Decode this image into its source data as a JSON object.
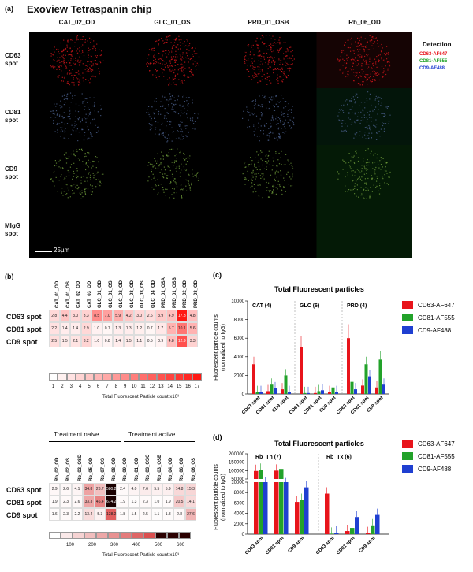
{
  "panel_a": {
    "label": "(a)",
    "title": "Exoview Tetraspanin chip",
    "columns": [
      "CAT_02_OD",
      "GLC_01_OS",
      "PRD_01_OSB",
      "Rb_06_OD"
    ],
    "rows": [
      {
        "l1": "CD63",
        "l2": "spot"
      },
      {
        "l1": "CD81",
        "l2": "spot"
      },
      {
        "l1": "CD9",
        "l2": "spot"
      },
      {
        "l1": "MIgG",
        "l2": "spot"
      }
    ],
    "detection_title": "Detection",
    "detection": [
      {
        "label": "CD63-AF647",
        "color": "#e8141b"
      },
      {
        "label": "CD81-AF555",
        "color": "#22a22a"
      },
      {
        "label": "CD9-AF488",
        "color": "#1f3fd1"
      }
    ],
    "scale_bar": "25µm"
  },
  "panel_b": {
    "label": "(b)",
    "heatmap1": {
      "columns": [
        "CAT_01_OD",
        "CAT_01_OS",
        "CAT_02_OD",
        "CAT_03_OD",
        "GLC_01_OD",
        "GLC_01_OS",
        "GLC_02_OD",
        "GLC_03_OD",
        "GLC_03_OS",
        "GLC_04_OD",
        "PRD_01_OSA",
        "PRD_01_OSB",
        "PRD_02_OD",
        "PRD_03_OD"
      ],
      "rows": [
        "CD63 spot",
        "CD81 spot",
        "CD9 spot"
      ],
      "values": [
        [
          "2.8",
          "4.4",
          "3.0",
          "3.3",
          "8.5",
          "7.0",
          "5.9",
          "4.2",
          "3.0",
          "2.6",
          "3.9",
          "4.9",
          "17.3",
          "4.8"
        ],
        [
          "2.2",
          "1.4",
          "1.4",
          "2.9",
          "1.0",
          "0.7",
          "1.3",
          "1.3",
          "1.2",
          "0.7",
          "1.7",
          "5.7",
          "10.1",
          "5.6"
        ],
        [
          "2.5",
          "1.5",
          "2.1",
          "3.2",
          "1.0",
          "0.8",
          "1.4",
          "1.5",
          "1.1",
          "0.5",
          "0.9",
          "4.8",
          "12.9",
          "3.3"
        ]
      ],
      "scale_ticks": [
        "1",
        "2",
        "3",
        "4",
        "5",
        "6",
        "7",
        "8",
        "9",
        "10",
        "11",
        "12",
        "13",
        "14",
        "15",
        "16",
        "17"
      ],
      "scale_caption": "Total Fluorescent Particle count x10³"
    },
    "heatmap2": {
      "group_naive": "Treatment naive",
      "group_active": "Treatment active",
      "columns": [
        "Rb_02_OD",
        "Rb_02_OS",
        "Rb_03_OSD",
        "Rb_05_OD",
        "Rb_07_OS",
        "Rb_08_OD",
        "Rb_09_OD",
        "Rb_01_OD",
        "Rb_03_OSC",
        "Rb_03_OSE",
        "Rb_04_OD",
        "Rb_06_OD",
        "Rb_06_OS"
      ],
      "rows": [
        "CD63 spot",
        "CD81 spot",
        "CD9 spot"
      ],
      "values": [
        [
          "2.9",
          "2.6",
          "4.1",
          "34.8",
          "23.7",
          "580.2",
          "2.4",
          "4.0",
          "7.6",
          "5.5",
          "5.9",
          "14.8",
          "15.3"
        ],
        [
          "1.9",
          "2.3",
          "2.6",
          "33.3",
          "46.4",
          "674.2",
          "1.9",
          "1.3",
          "2.3",
          "1.0",
          "1.9",
          "20.5",
          "14.1"
        ],
        [
          "1.6",
          "2.3",
          "2.2",
          "13.4",
          "5.3",
          "128.2",
          "1.8",
          "1.5",
          "2.5",
          "1.1",
          "1.8",
          "2.8",
          "27.6"
        ]
      ],
      "scale_ticks": [
        "100",
        "200",
        "300",
        "400",
        "500",
        "600"
      ],
      "scale_caption": "Total Fluorescent Particle count x10³"
    }
  },
  "chart_data": [
    {
      "type": "bar",
      "panel": "(c)",
      "title": "Total Fluorescent particles",
      "ylabel": "Fluorescent particle counts (normalized to IgG)",
      "ylim": [
        0,
        10000
      ],
      "yticks": [
        "0",
        "2000",
        "4000",
        "6000",
        "8000",
        "10000"
      ],
      "groups": [
        "CAT (4)",
        "GLC (6)",
        "PRD (4)"
      ],
      "categories": [
        "CD63 spot",
        "CD81 spot",
        "CD9 spot"
      ],
      "series": [
        {
          "name": "CD63-AF647",
          "color": "#e8141b",
          "values": [
            [
              3200,
              300,
              500
            ],
            [
              5000,
              100,
              200
            ],
            [
              6000,
              900,
              700
            ]
          ]
        },
        {
          "name": "CD81-AF555",
          "color": "#22a22a",
          "values": [
            [
              200,
              1000,
              2000
            ],
            [
              100,
              300,
              700
            ],
            [
              1300,
              3200,
              3700
            ]
          ]
        },
        {
          "name": "CD9-AF488",
          "color": "#1f3fd1",
          "values": [
            [
              200,
              600,
              200
            ],
            [
              100,
              400,
              200
            ],
            [
              500,
              1900,
              1000
            ]
          ]
        }
      ]
    },
    {
      "type": "bar",
      "panel": "(d)",
      "title": "Total Fluorescent particles",
      "ylabel": "Fluorescent particle counts (normalized to IgG)",
      "yticks_upper": [
        "100000",
        "150000",
        "200000"
      ],
      "yticks_lower": [
        "0",
        "2000",
        "4000",
        "6000",
        "8000",
        "10000"
      ],
      "groups": [
        "Rb_Tn (7)",
        "Rb_Tx (6)"
      ],
      "categories": [
        "CD63 spot",
        "CD81 spot",
        "CD9 spot"
      ],
      "series": [
        {
          "name": "CD63-AF647",
          "color": "#e8141b",
          "values": [
            [
              98000,
              100000,
              6200
            ],
            [
              7800,
              600,
              200
            ]
          ]
        },
        {
          "name": "CD81-AF555",
          "color": "#22a22a",
          "values": [
            [
              105000,
              110000,
              6600
            ],
            [
              100,
              1200,
              1700
            ]
          ]
        },
        {
          "name": "CD9-AF488",
          "color": "#1f3fd1",
          "values": [
            [
              22000,
              19000,
              9000
            ],
            [
              300,
              3300,
              3700
            ]
          ]
        }
      ]
    }
  ]
}
